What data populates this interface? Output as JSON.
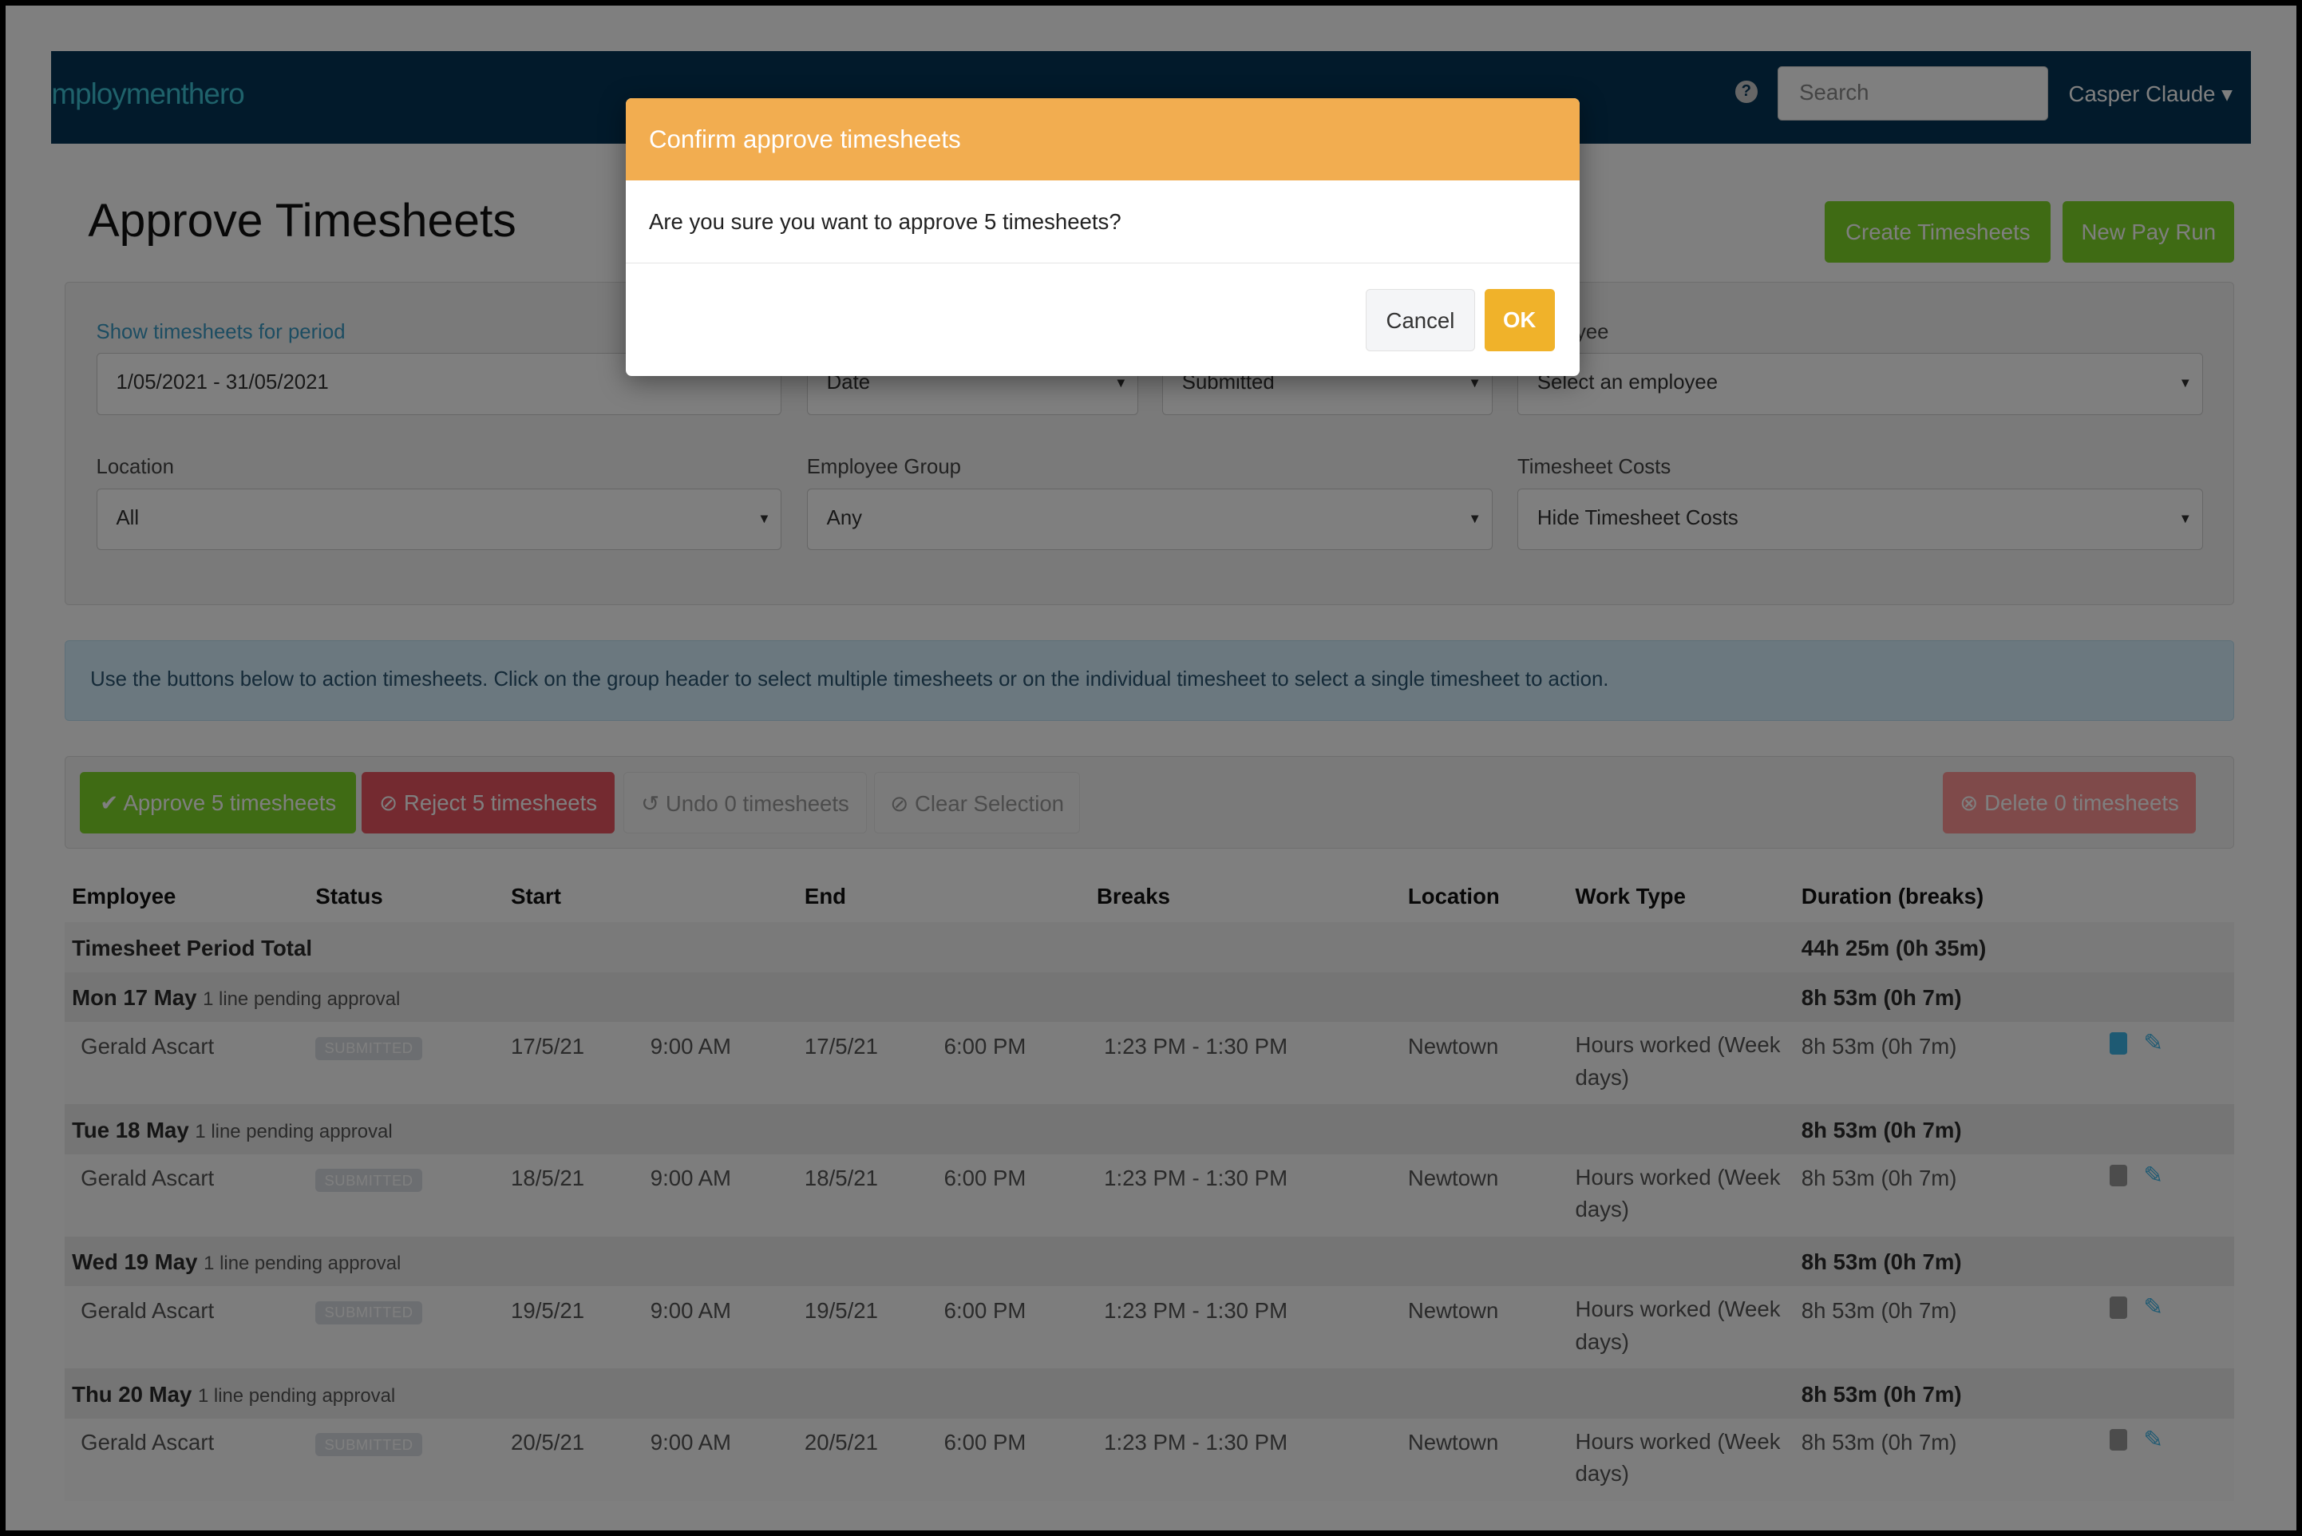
{
  "navbar": {
    "logo": "mploymenthero",
    "help_icon": "question-circle-icon",
    "search_placeholder": "Search",
    "user": "Casper Claude ▾"
  },
  "page": {
    "title": "Approve Timesheets",
    "create_button": "Create Timesheets",
    "new_pay_run_button": "New Pay Run"
  },
  "filters": {
    "period_label": "Show timesheets for period",
    "period_value": "1/05/2021 - 31/05/2021",
    "date_value": "Date",
    "status_value": "Submitted",
    "employee_label": "Employee",
    "employee_value": "Select an employee",
    "location_label": "Location",
    "location_value": "All",
    "group_label": "Employee Group",
    "group_value": "Any",
    "costs_label": "Timesheet Costs",
    "costs_value": "Hide Timesheet Costs"
  },
  "info": "Use the buttons below to action timesheets. Click on the group header to select multiple timesheets or on the individual timesheet to select a single timesheet to action.",
  "actions": {
    "approve": "Approve 5 timesheets",
    "reject": "Reject 5 timesheets",
    "undo": "Undo 0 timesheets",
    "clear": "Clear Selection",
    "delete": "Delete 0 timesheets"
  },
  "table": {
    "headers": [
      "Employee",
      "Status",
      "Start",
      "End",
      "Breaks",
      "Location",
      "Work Type",
      "Duration (breaks)"
    ],
    "total_label": "Timesheet Period Total",
    "total_value": "44h 25m (0h 35m)",
    "groups": [
      {
        "day": "Mon 17 May",
        "note": "1 line pending approval",
        "total": "8h 53m (0h 7m)",
        "row": {
          "employee": "Gerald Ascart",
          "status": "SUBMITTED",
          "start_date": "17/5/21",
          "start_time": "9:00 AM",
          "end_date": "17/5/21",
          "end_time": "6:00 PM",
          "breaks": "1:23 PM - 1:30 PM",
          "location": "Newtown",
          "work_type": "Hours worked (Week days)",
          "duration": "8h 53m (0h 7m)"
        }
      },
      {
        "day": "Tue 18 May",
        "note": "1 line pending approval",
        "total": "8h 53m (0h 7m)",
        "row": {
          "employee": "Gerald Ascart",
          "status": "SUBMITTED",
          "start_date": "18/5/21",
          "start_time": "9:00 AM",
          "end_date": "18/5/21",
          "end_time": "6:00 PM",
          "breaks": "1:23 PM - 1:30 PM",
          "location": "Newtown",
          "work_type": "Hours worked (Week days)",
          "duration": "8h 53m (0h 7m)"
        }
      },
      {
        "day": "Wed 19 May",
        "note": "1 line pending approval",
        "total": "8h 53m (0h 7m)",
        "row": {
          "employee": "Gerald Ascart",
          "status": "SUBMITTED",
          "start_date": "19/5/21",
          "start_time": "9:00 AM",
          "end_date": "19/5/21",
          "end_time": "6:00 PM",
          "breaks": "1:23 PM - 1:30 PM",
          "location": "Newtown",
          "work_type": "Hours worked (Week days)",
          "duration": "8h 53m (0h 7m)"
        }
      },
      {
        "day": "Thu 20 May",
        "note": "1 line pending approval",
        "total": "8h 53m (0h 7m)",
        "row": {
          "employee": "Gerald Ascart",
          "status": "SUBMITTED",
          "start_date": "20/5/21",
          "start_time": "9:00 AM",
          "end_date": "20/5/21",
          "end_time": "6:00 PM",
          "breaks": "1:23 PM - 1:30 PM",
          "location": "Newtown",
          "work_type": "Hours worked (Week days)",
          "duration": "8h 53m (0h 7m)"
        }
      }
    ]
  },
  "modal": {
    "title": "Confirm approve timesheets",
    "message": "Are you sure you want to approve 5 timesheets?",
    "cancel": "Cancel",
    "ok": "OK"
  },
  "colors": {
    "navbar": "#043456",
    "approve": "#7ed628",
    "reject": "#e85460",
    "delete": "#fe9494",
    "modal_header": "#f2ad50",
    "ok": "#f0b22a",
    "icon": "#3cb4e6"
  }
}
